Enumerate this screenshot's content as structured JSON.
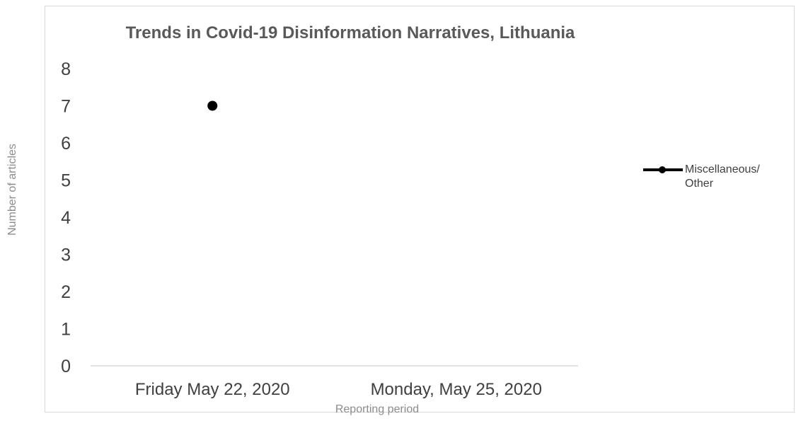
{
  "chart_data": {
    "type": "line",
    "title": "Trends in Covid-19 Disinformation Narratives, Lithuania",
    "xlabel": "Reporting period",
    "ylabel": "Number of articles",
    "categories": [
      "Friday May 22, 2020",
      "Monday, May 25, 2020"
    ],
    "series": [
      {
        "name": "Miscellaneous/ Other",
        "values": [
          7,
          null
        ],
        "color": "#000000"
      }
    ],
    "ylim": [
      0,
      8
    ],
    "yticks": [
      "0",
      "1",
      "2",
      "3",
      "4",
      "5",
      "6",
      "7",
      "8"
    ],
    "grid": false,
    "legend_position": "right"
  }
}
